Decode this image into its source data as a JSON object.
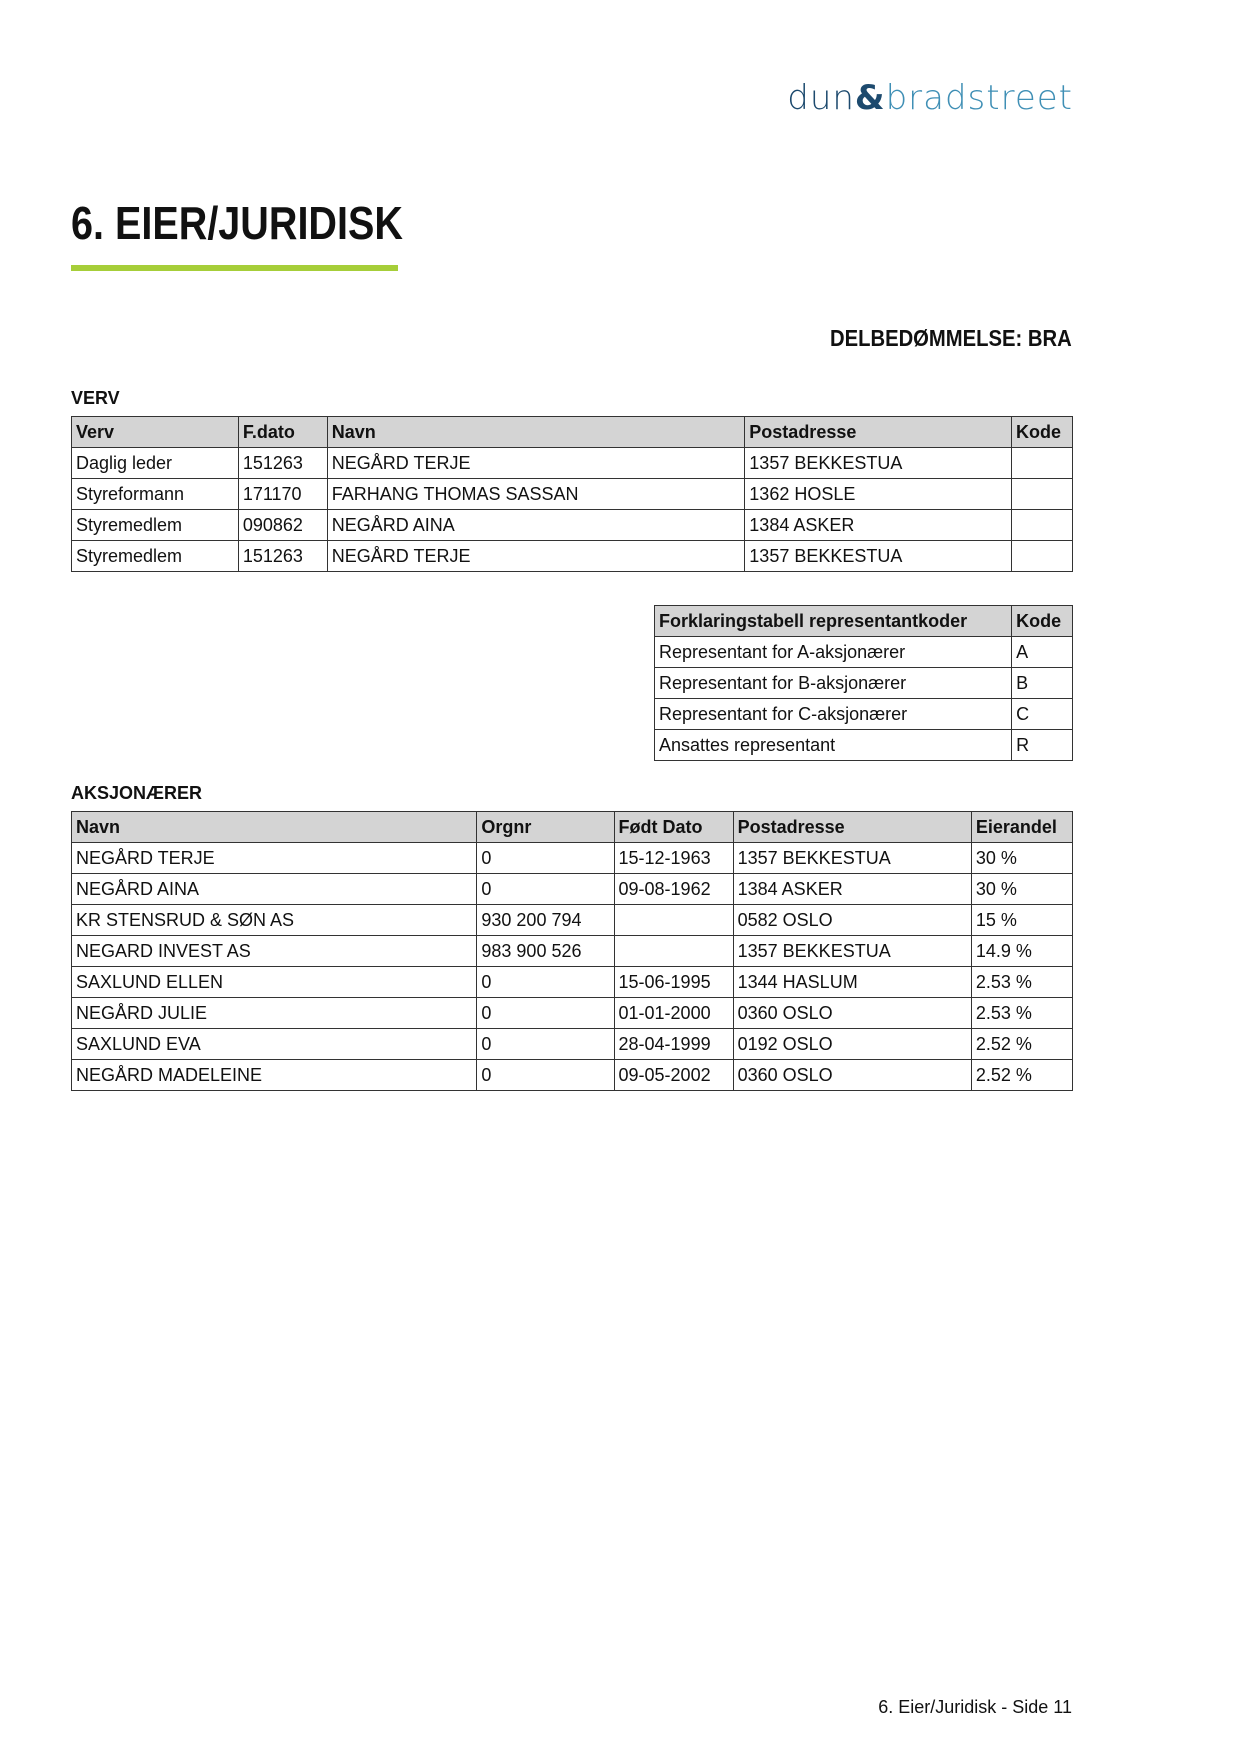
{
  "logo": {
    "text_left": "dun",
    "amp": "&",
    "text_right": "bradstreet",
    "colors": {
      "dark": "#1d4a6e",
      "light": "#3f8fb5"
    }
  },
  "title": "6. EIER/JURIDISK",
  "accent_color": "#a6ce39",
  "rating": "DELBEDØMMELSE: BRA",
  "verv": {
    "label": "VERV",
    "headers": [
      "Verv",
      "F.dato",
      "Navn",
      "Postadresse",
      "Kode"
    ],
    "rows": [
      [
        "Daglig leder",
        "151263",
        "NEGÅRD TERJE",
        "1357 BEKKESTUA",
        ""
      ],
      [
        "Styreformann",
        "171170",
        "FARHANG THOMAS SASSAN",
        "1362 HOSLE",
        ""
      ],
      [
        "Styremedlem",
        "090862",
        "NEGÅRD AINA",
        "1384 ASKER",
        ""
      ],
      [
        "Styremedlem",
        "151263",
        "NEGÅRD TERJE",
        "1357 BEKKESTUA",
        ""
      ]
    ]
  },
  "codes": {
    "headers": [
      "Forklaringstabell representantkoder",
      "Kode"
    ],
    "rows": [
      [
        "Representant for A-aksjonærer",
        "A"
      ],
      [
        "Representant for B-aksjonærer",
        "B"
      ],
      [
        "Representant for C-aksjonærer",
        "C"
      ],
      [
        "Ansattes representant",
        "R"
      ]
    ]
  },
  "aksjonaerer": {
    "label": "AKSJONÆRER",
    "headers": [
      "Navn",
      "Orgnr",
      "Født Dato",
      "Postadresse",
      "Eierandel"
    ],
    "rows": [
      [
        "NEGÅRD TERJE",
        "0",
        "15-12-1963",
        "1357 BEKKESTUA",
        "30 %"
      ],
      [
        "NEGÅRD AINA",
        "0",
        "09-08-1962",
        "1384 ASKER",
        "30 %"
      ],
      [
        "KR STENSRUD & SØN AS",
        "930 200 794",
        "",
        "0582 OSLO",
        "15 %"
      ],
      [
        "NEGARD INVEST AS",
        "983 900 526",
        "",
        "1357 BEKKESTUA",
        "14.9 %"
      ],
      [
        "SAXLUND ELLEN",
        "0",
        "15-06-1995",
        "1344 HASLUM",
        "2.53 %"
      ],
      [
        "NEGÅRD JULIE",
        "0",
        "01-01-2000",
        "0360 OSLO",
        "2.53 %"
      ],
      [
        "SAXLUND EVA",
        "0",
        "28-04-1999",
        "0192 OSLO",
        "2.52 %"
      ],
      [
        "NEGÅRD MADELEINE",
        "0",
        "09-05-2002",
        "0360 OSLO",
        "2.52 %"
      ]
    ]
  },
  "footer": "6. Eier/Juridisk - Side 11"
}
